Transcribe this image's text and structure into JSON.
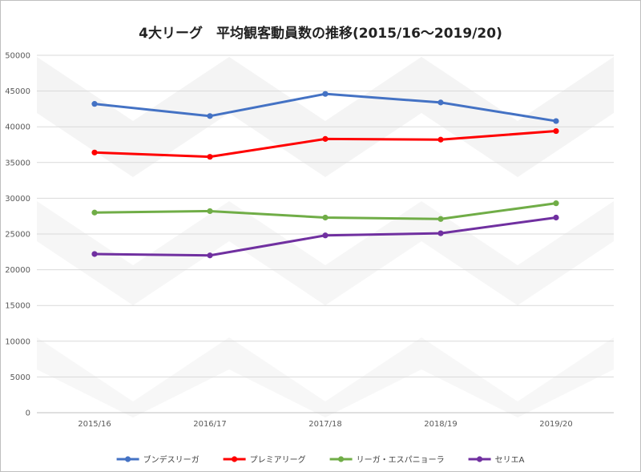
{
  "chart_data": {
    "type": "line",
    "title": "4大リーグ　平均観客動員数の推移(2015/16～2019/20)",
    "xlabel": "",
    "ylabel": "",
    "categories": [
      "2015/16",
      "2016/17",
      "2017/18",
      "2018/19",
      "2019/20"
    ],
    "ylim": [
      0,
      50000
    ],
    "yticks": [
      0,
      5000,
      10000,
      15000,
      20000,
      25000,
      30000,
      35000,
      40000,
      45000,
      50000
    ],
    "grid": true,
    "legend_position": "bottom",
    "series": [
      {
        "name": "ブンデスリーガ",
        "color": "#4472c4",
        "values": [
          43200,
          41500,
          44600,
          43400,
          40800
        ]
      },
      {
        "name": "プレミアリーグ",
        "color": "#ff0000",
        "values": [
          36400,
          35800,
          38300,
          38200,
          39400
        ]
      },
      {
        "name": "リーガ・エスパニョーラ",
        "color": "#70ad47",
        "values": [
          28000,
          28200,
          27300,
          27100,
          29300
        ]
      },
      {
        "name": "セリエA",
        "color": "#7030a0",
        "values": [
          22200,
          22000,
          24800,
          25100,
          27300
        ]
      }
    ]
  }
}
